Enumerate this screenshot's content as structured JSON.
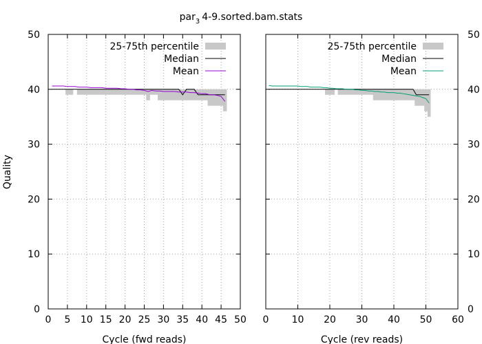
{
  "title": "par",
  "title_sub": "3",
  "title_rest": "4-9.sorted.bam.stats",
  "ylabel": "Quality",
  "colors": {
    "band": "#c8c8c8",
    "median": "#000000",
    "mean_fwd": "#9400d3",
    "mean_rev": "#009e73",
    "grid": "#a0a0a0"
  },
  "chart_data": [
    {
      "type": "line",
      "xlabel": "Cycle (fwd reads)",
      "xlim": [
        0,
        50
      ],
      "ylim": [
        0,
        50
      ],
      "xticks": [
        0,
        5,
        10,
        15,
        20,
        25,
        30,
        35,
        40,
        45,
        50
      ],
      "yticks": [
        0,
        10,
        20,
        30,
        40,
        50
      ],
      "legend": {
        "position": "top-right",
        "entries": [
          "25-75th percentile",
          "Median",
          "Mean"
        ]
      },
      "x": [
        1,
        2,
        3,
        4,
        5,
        6,
        7,
        8,
        9,
        10,
        11,
        12,
        13,
        14,
        15,
        16,
        17,
        18,
        19,
        20,
        21,
        22,
        23,
        24,
        25,
        26,
        27,
        28,
        29,
        30,
        31,
        32,
        33,
        34,
        35,
        36,
        37,
        38,
        39,
        40,
        41,
        42,
        43,
        44,
        45,
        46
      ],
      "p25": [
        40,
        40,
        40,
        40,
        39,
        39,
        40,
        39,
        39,
        39,
        39,
        39,
        39,
        39,
        39,
        39,
        39,
        39,
        39,
        39,
        39,
        39,
        39,
        39,
        39,
        38,
        39,
        39,
        38,
        38,
        38,
        38,
        38,
        38,
        38,
        38,
        38,
        38,
        38,
        38,
        38,
        37,
        37,
        37,
        37,
        36
      ],
      "p75": [
        40,
        40,
        40,
        40,
        40,
        40,
        40,
        40,
        40,
        40,
        40,
        40,
        40,
        40,
        40,
        40,
        40,
        40,
        40,
        40,
        40,
        40,
        40,
        40,
        40,
        40,
        40,
        40,
        40,
        40,
        40,
        40,
        40,
        40,
        40,
        40,
        40,
        40,
        40,
        40,
        40,
        40,
        40,
        40,
        40,
        40
      ],
      "median": [
        40,
        40,
        40,
        40,
        40,
        40,
        40,
        40,
        40,
        40,
        40,
        40,
        40,
        40,
        40,
        40,
        40,
        40,
        40,
        40,
        40,
        40,
        40,
        40,
        40,
        40,
        40,
        40,
        40,
        40,
        40,
        40,
        40,
        40,
        39,
        40,
        40,
        40,
        39,
        39,
        39,
        39,
        39,
        39,
        39,
        39
      ],
      "mean": [
        40.6,
        40.6,
        40.6,
        40.6,
        40.5,
        40.5,
        40.5,
        40.4,
        40.4,
        40.4,
        40.3,
        40.3,
        40.3,
        40.3,
        40.2,
        40.2,
        40.2,
        40.2,
        40.1,
        40.1,
        40.0,
        40.0,
        39.9,
        39.9,
        39.8,
        39.6,
        39.8,
        39.7,
        39.7,
        39.6,
        39.6,
        39.6,
        39.6,
        39.5,
        39.5,
        39.5,
        39.4,
        39.4,
        39.3,
        39.2,
        39.2,
        39.0,
        39.0,
        38.9,
        38.7,
        37.8
      ]
    },
    {
      "type": "line",
      "xlabel": "Cycle (rev reads)",
      "xlim": [
        0,
        60
      ],
      "ylim": [
        0,
        50
      ],
      "xticks": [
        0,
        10,
        20,
        30,
        40,
        50,
        60
      ],
      "yticks": [
        0,
        10,
        20,
        30,
        40,
        50
      ],
      "legend": {
        "position": "top-right",
        "entries": [
          "25-75th percentile",
          "Median",
          "Mean"
        ]
      },
      "x": [
        1,
        2,
        3,
        4,
        5,
        6,
        7,
        8,
        9,
        10,
        11,
        12,
        13,
        14,
        15,
        16,
        17,
        18,
        19,
        20,
        21,
        22,
        23,
        24,
        25,
        26,
        27,
        28,
        29,
        30,
        31,
        32,
        33,
        34,
        35,
        36,
        37,
        38,
        39,
        40,
        41,
        42,
        43,
        44,
        45,
        46,
        47,
        48,
        49,
        50,
        51
      ],
      "p25": [
        40,
        40,
        40,
        40,
        40,
        40,
        40,
        40,
        40,
        40,
        40,
        40,
        40,
        40,
        40,
        40,
        40,
        40,
        39,
        39,
        39,
        40,
        39,
        39,
        39,
        39,
        39,
        39,
        39,
        39,
        39,
        39,
        39,
        38,
        38,
        38,
        38,
        38,
        38,
        38,
        38,
        38,
        38,
        38,
        38,
        38,
        37,
        37,
        37,
        36,
        35
      ],
      "p75": [
        40,
        40,
        40,
        40,
        40,
        40,
        40,
        40,
        40,
        40,
        40,
        40,
        40,
        40,
        40,
        40,
        40,
        40,
        40,
        40,
        40,
        40,
        40,
        40,
        40,
        40,
        40,
        40,
        40,
        40,
        40,
        40,
        40,
        40,
        40,
        40,
        40,
        40,
        40,
        40,
        40,
        40,
        40,
        40,
        40,
        40,
        40,
        40,
        40,
        40,
        40
      ],
      "median": [
        40,
        40,
        40,
        40,
        40,
        40,
        40,
        40,
        40,
        40,
        40,
        40,
        40,
        40,
        40,
        40,
        40,
        40,
        40,
        40,
        40,
        40,
        40,
        40,
        40,
        40,
        40,
        40,
        40,
        40,
        40,
        40,
        40,
        40,
        40,
        40,
        40,
        40,
        40,
        40,
        40,
        40,
        40,
        40,
        40,
        40,
        39,
        39,
        39,
        39,
        39
      ],
      "mean": [
        40.7,
        40.6,
        40.6,
        40.6,
        40.6,
        40.6,
        40.6,
        40.6,
        40.6,
        40.6,
        40.5,
        40.5,
        40.5,
        40.4,
        40.4,
        40.4,
        40.4,
        40.3,
        40.3,
        40.2,
        40.2,
        40.1,
        40.1,
        40.1,
        40.0,
        40.0,
        40.0,
        39.9,
        39.9,
        39.8,
        39.8,
        39.7,
        39.7,
        39.6,
        39.6,
        39.5,
        39.5,
        39.4,
        39.4,
        39.4,
        39.3,
        39.3,
        39.2,
        39.1,
        39.0,
        38.9,
        38.8,
        38.7,
        38.5,
        38.3,
        37.5
      ]
    }
  ]
}
